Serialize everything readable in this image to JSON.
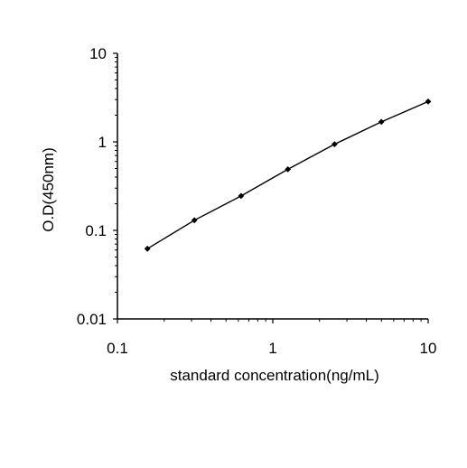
{
  "chart_data": {
    "type": "line",
    "title": "",
    "xlabel": "standard concentration(ng/mL)",
    "ylabel": "O.D(450nm)",
    "x_scale": "log",
    "y_scale": "log",
    "xlim": [
      0.1,
      10
    ],
    "ylim": [
      0.01,
      10
    ],
    "x_ticks": [
      "0.1",
      "1",
      "10"
    ],
    "y_ticks": [
      "0.01",
      "0.1",
      "1",
      "10"
    ],
    "grid": false,
    "legend": "none",
    "series": [
      {
        "x": [
          0.156,
          0.313,
          0.625,
          1.25,
          2.5,
          5,
          10
        ],
        "y": [
          0.062,
          0.13,
          0.245,
          0.49,
          0.94,
          1.68,
          2.85
        ],
        "color": "#000000",
        "marker": "diamond"
      }
    ]
  }
}
